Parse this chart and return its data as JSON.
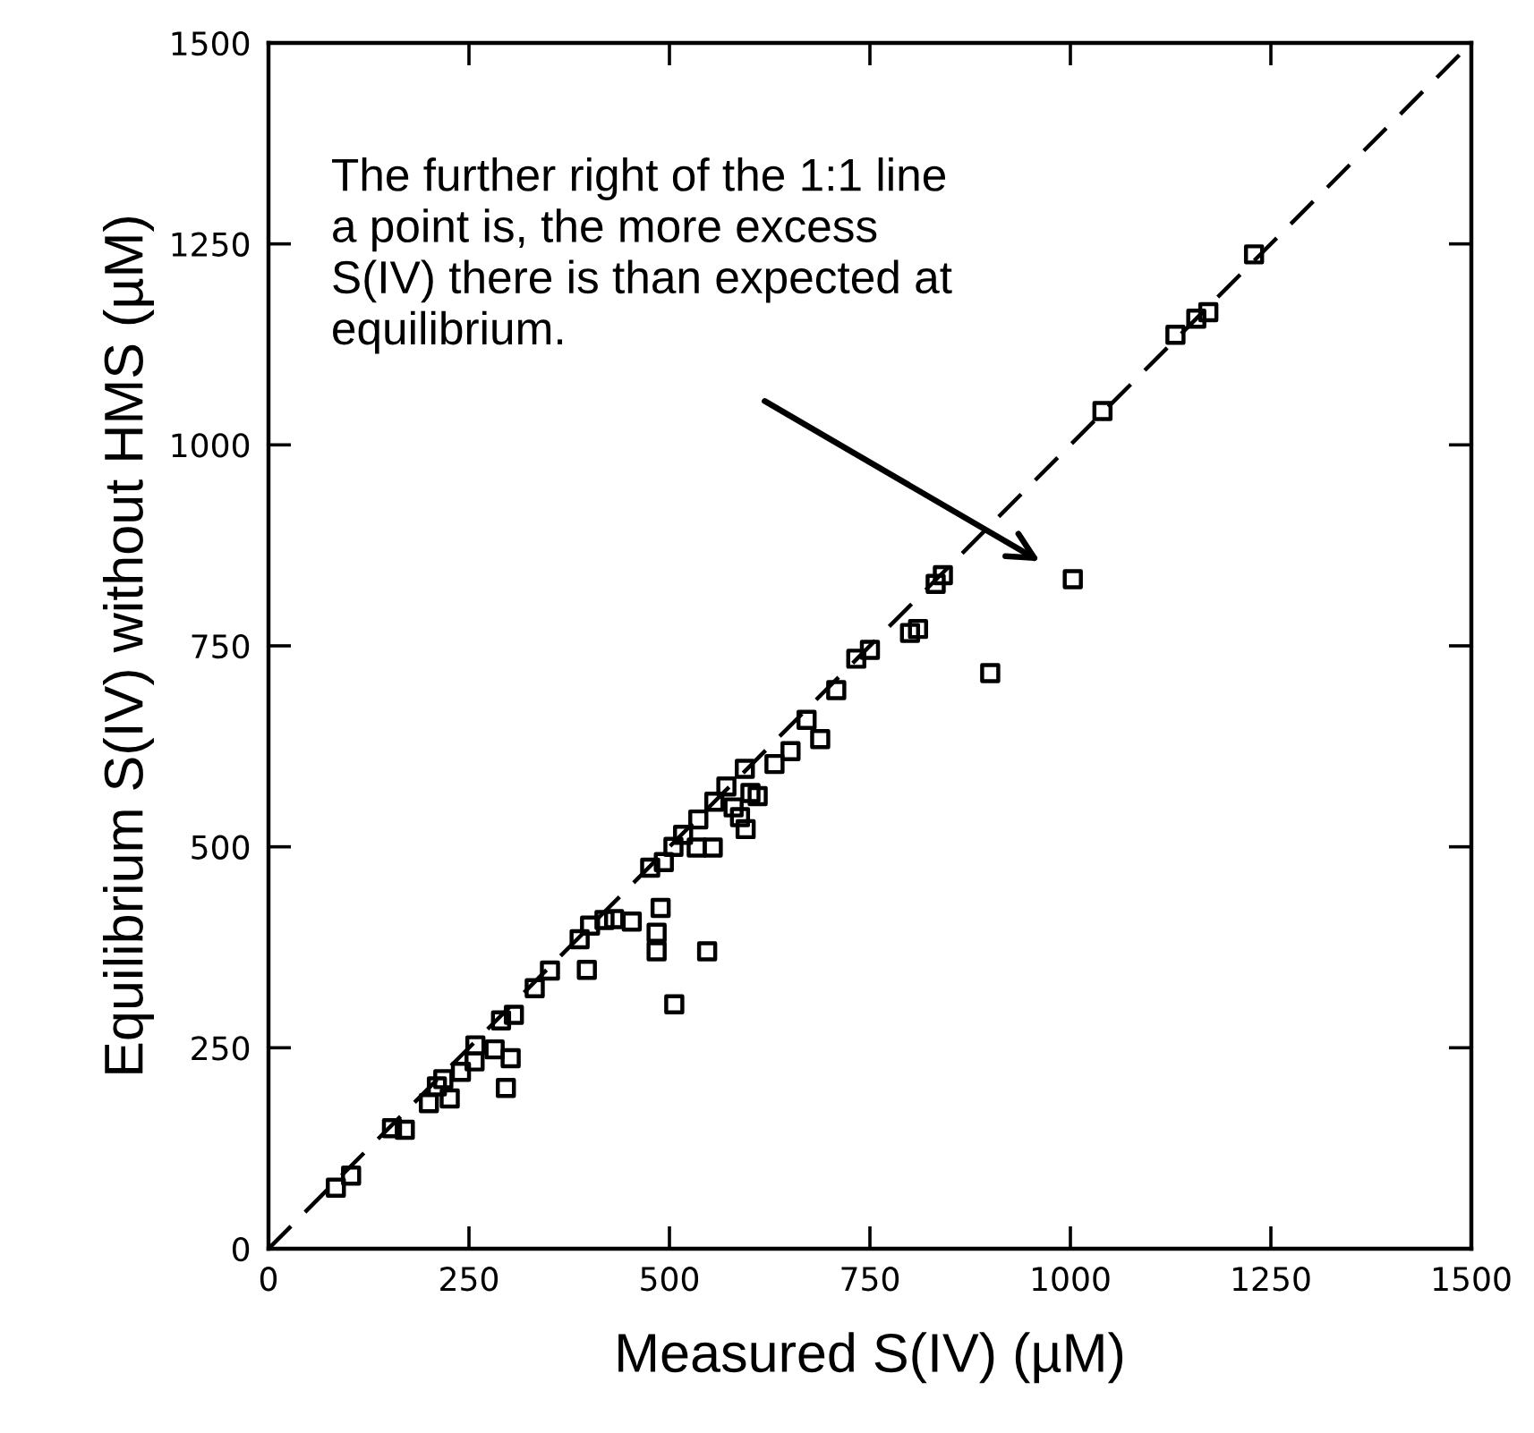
{
  "chart_data": {
    "type": "scatter",
    "xlabel": "Measured S(IV) (µM)",
    "ylabel": "Equilibrium S(IV) without HMS (µM)",
    "xlim": [
      0,
      1500
    ],
    "ylim": [
      0,
      1500
    ],
    "xticks": [
      0,
      250,
      500,
      750,
      1000,
      1250,
      1500
    ],
    "yticks": [
      0,
      250,
      500,
      750,
      1000,
      1250,
      1500
    ],
    "grid": false,
    "series": [
      {
        "type": "scatter",
        "color": "#000000",
        "marker": "square",
        "x": [
          84,
          103,
          154,
          170,
          200,
          210,
          218,
          226,
          240,
          257,
          258,
          282,
          302,
          296,
          290,
          306,
          332,
          351,
          397,
          388,
          401,
          419,
          431,
          453,
          484,
          484,
          489,
          547,
          506,
          476,
          493,
          505,
          517,
          534,
          554,
          536,
          556,
          571,
          580,
          588,
          595,
          594,
          601,
          610,
          631,
          651,
          671,
          688,
          708,
          733,
          750,
          800,
          810,
          900,
          832,
          841,
          1003,
          1040,
          1131,
          1157,
          1172,
          1229
        ],
        "values": [
          76,
          91,
          150,
          148,
          181,
          202,
          211,
          187,
          220,
          233,
          253,
          248,
          237,
          200,
          284,
          291,
          324,
          346,
          347,
          385,
          402,
          409,
          410,
          407,
          393,
          370,
          424,
          370,
          304,
          474,
          481,
          500,
          515,
          499,
          499,
          534,
          556,
          575,
          549,
          537,
          522,
          597,
          567,
          563,
          603,
          619,
          658,
          634,
          695,
          734,
          745,
          766,
          771,
          716,
          827,
          838,
          833,
          1042,
          1137,
          1157,
          1165,
          1237
        ]
      },
      {
        "type": "line",
        "color": "#000000",
        "line_style": "dashed",
        "marker": "none",
        "x": [
          0,
          1500
        ],
        "values": [
          0,
          1500
        ]
      }
    ],
    "annotations": [
      "The further right of the 1:1 line a point is, the more excess S(IV) there is than expected at equilibrium."
    ]
  }
}
